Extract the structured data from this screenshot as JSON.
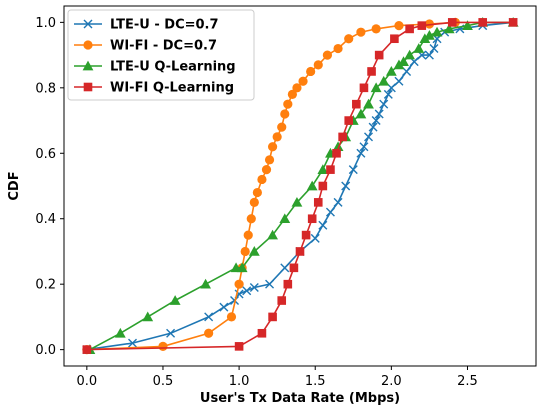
{
  "chart_data": {
    "type": "line",
    "title": "",
    "xlabel": "User's Tx Data Rate (Mbps)",
    "ylabel": "CDF",
    "xlim": [
      -0.15,
      2.95
    ],
    "ylim": [
      -0.05,
      1.05
    ],
    "xticks": [
      0.0,
      0.5,
      1.0,
      1.5,
      2.0,
      2.5
    ],
    "xtick_labels": [
      "0.0",
      "0.5",
      "1.0",
      "1.5",
      "2.0",
      "2.5"
    ],
    "yticks": [
      0.0,
      0.2,
      0.4,
      0.6,
      0.8,
      1.0
    ],
    "ytick_labels": [
      "0.0",
      "0.2",
      "0.4",
      "0.6",
      "0.8",
      "1.0"
    ],
    "grid": false,
    "legend_position": "top-left",
    "series": [
      {
        "name": "LTE-U - DC=0.7",
        "color": "#1f77b4",
        "marker": "x",
        "x": [
          0.0,
          0.3,
          0.55,
          0.8,
          0.9,
          0.97,
          1.0,
          1.05,
          1.1,
          1.2,
          1.3,
          1.4,
          1.5,
          1.55,
          1.6,
          1.65,
          1.7,
          1.75,
          1.8,
          1.82,
          1.85,
          1.88,
          1.9,
          1.92,
          1.95,
          1.98,
          2.0,
          2.05,
          2.1,
          2.15,
          2.2,
          2.25,
          2.28,
          2.3,
          2.35,
          2.45,
          2.6,
          2.8
        ],
        "y": [
          0.0,
          0.02,
          0.05,
          0.1,
          0.13,
          0.15,
          0.17,
          0.18,
          0.19,
          0.2,
          0.25,
          0.3,
          0.34,
          0.38,
          0.42,
          0.45,
          0.5,
          0.55,
          0.6,
          0.62,
          0.65,
          0.68,
          0.7,
          0.72,
          0.75,
          0.78,
          0.8,
          0.82,
          0.85,
          0.88,
          0.9,
          0.9,
          0.92,
          0.95,
          0.97,
          0.98,
          0.99,
          1.0
        ]
      },
      {
        "name": "WI-FI - DC=0.7",
        "color": "#ff7f0e",
        "marker": "circle",
        "x": [
          0.0,
          0.5,
          0.8,
          0.95,
          1.0,
          1.02,
          1.04,
          1.06,
          1.08,
          1.1,
          1.12,
          1.15,
          1.18,
          1.2,
          1.22,
          1.25,
          1.28,
          1.3,
          1.32,
          1.35,
          1.38,
          1.42,
          1.47,
          1.52,
          1.58,
          1.65,
          1.72,
          1.8,
          1.9,
          2.05,
          2.25,
          2.42
        ],
        "y": [
          0.0,
          0.01,
          0.05,
          0.1,
          0.2,
          0.25,
          0.3,
          0.35,
          0.4,
          0.45,
          0.48,
          0.52,
          0.55,
          0.58,
          0.62,
          0.65,
          0.68,
          0.72,
          0.75,
          0.78,
          0.8,
          0.82,
          0.85,
          0.87,
          0.9,
          0.92,
          0.95,
          0.97,
          0.98,
          0.99,
          0.995,
          1.0
        ]
      },
      {
        "name": "LTE-U Q-Learning",
        "color": "#2ca02c",
        "marker": "triangle",
        "x": [
          0.02,
          0.22,
          0.4,
          0.58,
          0.78,
          0.98,
          1.02,
          1.1,
          1.22,
          1.3,
          1.38,
          1.48,
          1.55,
          1.6,
          1.65,
          1.7,
          1.75,
          1.8,
          1.85,
          1.9,
          1.95,
          2.0,
          2.05,
          2.08,
          2.12,
          2.18,
          2.22,
          2.25,
          2.3,
          2.38,
          2.5,
          2.6,
          2.8
        ],
        "y": [
          0.0,
          0.05,
          0.1,
          0.15,
          0.2,
          0.25,
          0.25,
          0.3,
          0.35,
          0.4,
          0.45,
          0.5,
          0.55,
          0.6,
          0.62,
          0.65,
          0.7,
          0.72,
          0.75,
          0.8,
          0.82,
          0.85,
          0.87,
          0.88,
          0.9,
          0.92,
          0.95,
          0.96,
          0.97,
          0.98,
          0.99,
          1.0,
          1.0
        ]
      },
      {
        "name": "WI-FI Q-Learning",
        "color": "#d62728",
        "marker": "square",
        "x": [
          0.0,
          1.0,
          1.15,
          1.22,
          1.28,
          1.32,
          1.36,
          1.4,
          1.44,
          1.48,
          1.52,
          1.55,
          1.6,
          1.64,
          1.68,
          1.72,
          1.77,
          1.82,
          1.87,
          1.92,
          2.02,
          2.12,
          2.2,
          2.4,
          2.6,
          2.8
        ],
        "y": [
          0.0,
          0.01,
          0.05,
          0.1,
          0.15,
          0.2,
          0.25,
          0.3,
          0.35,
          0.4,
          0.45,
          0.5,
          0.55,
          0.6,
          0.65,
          0.7,
          0.75,
          0.8,
          0.85,
          0.9,
          0.95,
          0.98,
          0.99,
          1.0,
          1.0,
          1.0
        ]
      }
    ]
  }
}
